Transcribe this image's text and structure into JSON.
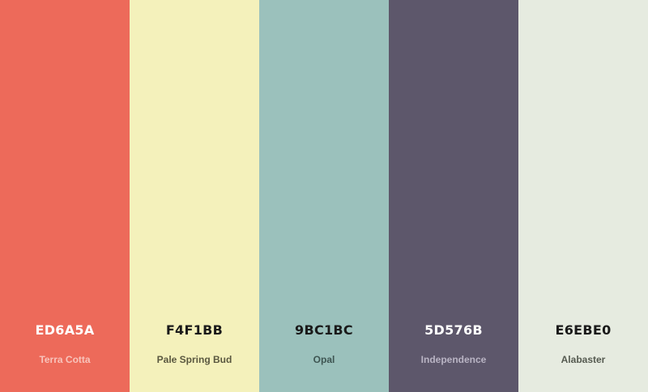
{
  "swatches": [
    {
      "hex": "ED6A5A",
      "name": "Terra Cotta",
      "color": "#ED6A5A",
      "hex_text_color": "#ffffff",
      "name_text_color": "#f8c4bc"
    },
    {
      "hex": "F4F1BB",
      "name": "Pale Spring Bud",
      "color": "#F4F1BB",
      "hex_text_color": "#1a1a1a",
      "name_text_color": "#5a5840"
    },
    {
      "hex": "9BC1BC",
      "name": "Opal",
      "color": "#9BC1BC",
      "hex_text_color": "#1a1a1a",
      "name_text_color": "#3e5552"
    },
    {
      "hex": "5D576B",
      "name": "Independence",
      "color": "#5D576B",
      "hex_text_color": "#ffffff",
      "name_text_color": "#b9b4c4"
    },
    {
      "hex": "E6EBE0",
      "name": "Alabaster",
      "color": "#E6EBE0",
      "hex_text_color": "#1a1a1a",
      "name_text_color": "#555a50"
    }
  ]
}
